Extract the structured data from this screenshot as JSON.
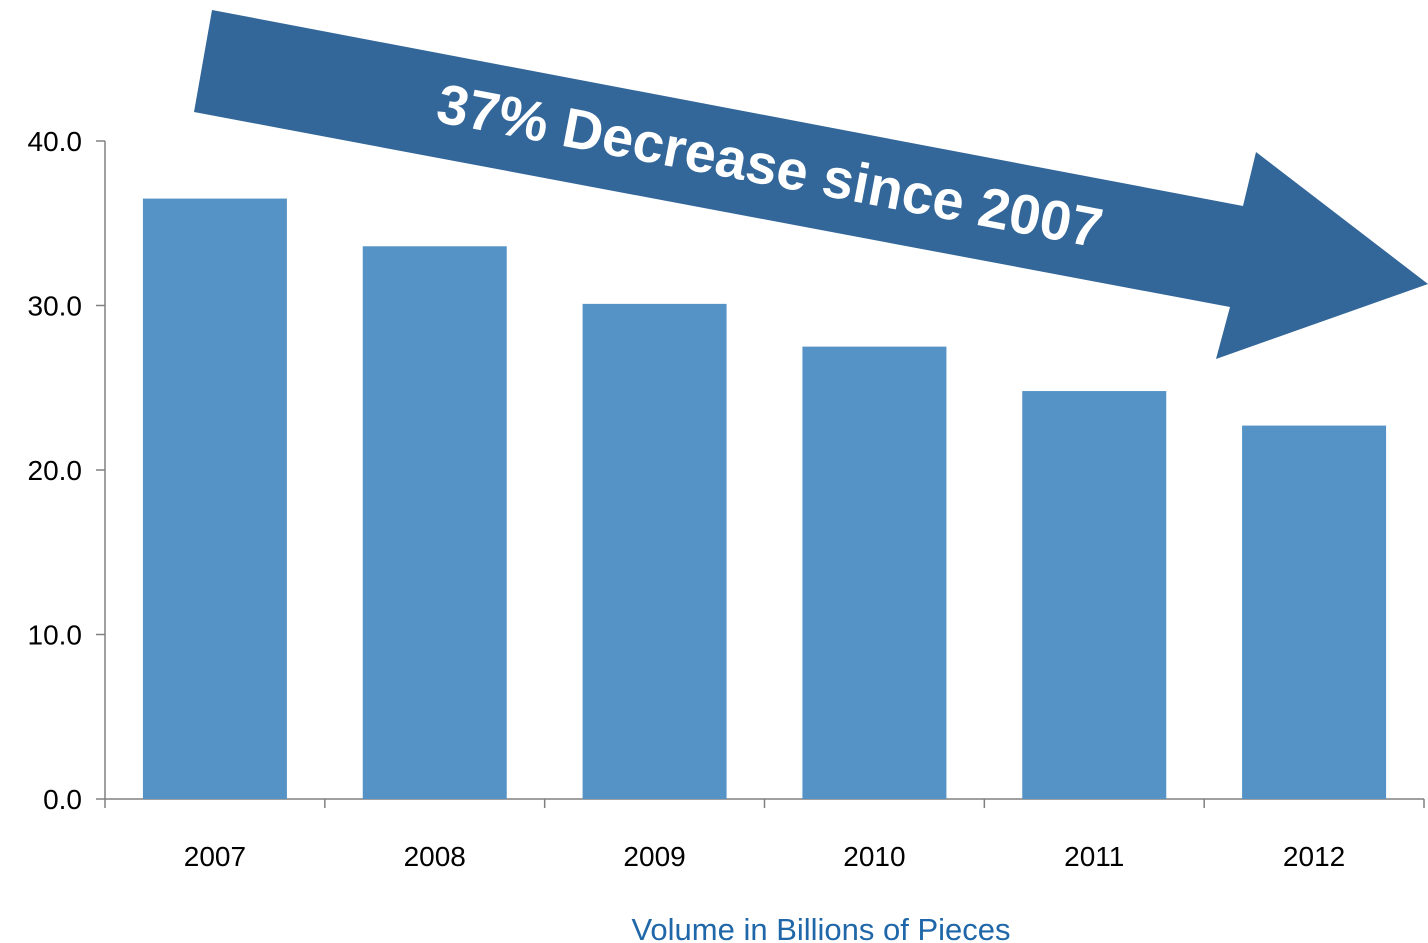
{
  "chart_data": {
    "type": "bar",
    "categories": [
      "2007",
      "2008",
      "2009",
      "2010",
      "2011",
      "2012"
    ],
    "values": [
      36.5,
      33.6,
      30.1,
      27.5,
      24.8,
      22.7
    ],
    "ylim": [
      0,
      40
    ],
    "yticks": [
      "0.0",
      "10.0",
      "20.0",
      "30.0",
      "40.0"
    ],
    "xlabel": "Volume in Billions of Pieces",
    "ylabel": "",
    "title": "",
    "annotation": "37% Decrease since 2007",
    "grid": false,
    "colors": {
      "bar": "#5593c6",
      "arrow": "#336699",
      "xlabel": "#1f67a8",
      "axis": "#808080"
    }
  }
}
